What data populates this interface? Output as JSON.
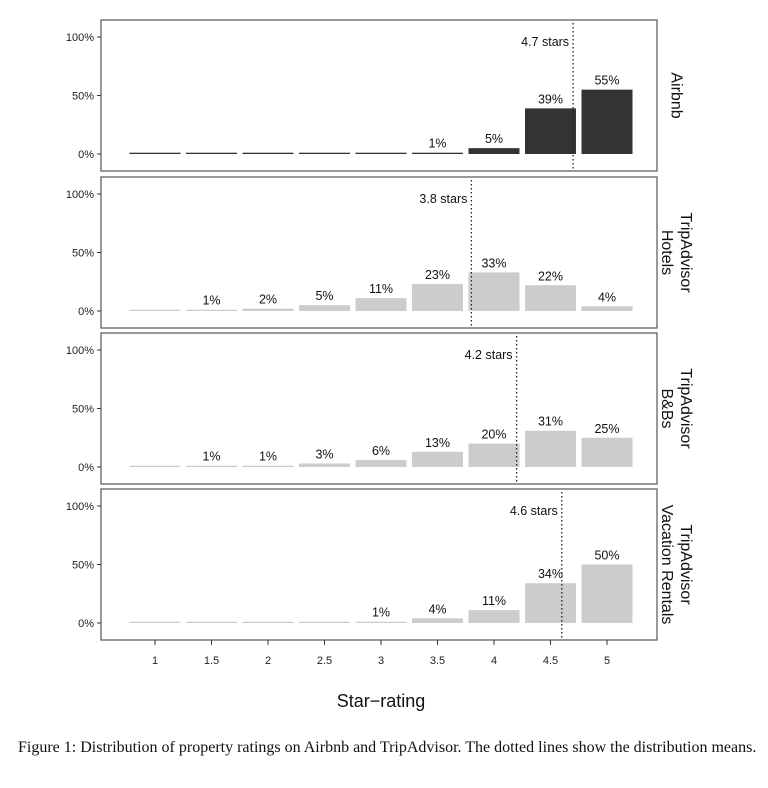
{
  "caption": "Figure 1: Distribution of property ratings on Airbnb and TripAdvisor. The dotted lines show the distribution means.",
  "colors": {
    "dark": "#333333",
    "light": "#cccccc",
    "frame": "#555555"
  },
  "chart_data": {
    "type": "bar",
    "xlabel": "Star−rating",
    "categories": [
      "1",
      "1.5",
      "2",
      "2.5",
      "3",
      "3.5",
      "4",
      "4.5",
      "5"
    ],
    "ylim": [
      0,
      100
    ],
    "y_ticks": [
      "0%",
      "50%",
      "100%"
    ],
    "panels": [
      {
        "label_lines": [
          "Airbnb"
        ],
        "color": "dark",
        "values": [
          0,
          0,
          0,
          0,
          0,
          1,
          5,
          39,
          55
        ],
        "value_labels": [
          "",
          "",
          "",
          "",
          "",
          "1%",
          "5%",
          "39%",
          "55%"
        ],
        "mean": 4.7,
        "mean_label": "4.7 stars"
      },
      {
        "label_lines": [
          "TripAdvisor",
          "Hotels"
        ],
        "color": "light",
        "values": [
          0,
          1,
          2,
          5,
          11,
          23,
          33,
          22,
          4
        ],
        "value_labels": [
          "",
          "1%",
          "2%",
          "5%",
          "11%",
          "23%",
          "33%",
          "22%",
          "4%"
        ],
        "mean": 3.8,
        "mean_label": "3.8 stars"
      },
      {
        "label_lines": [
          "TripAdvisor",
          "B&Bs"
        ],
        "color": "light",
        "values": [
          0,
          1,
          1,
          3,
          6,
          13,
          20,
          31,
          25
        ],
        "value_labels": [
          "",
          "1%",
          "1%",
          "3%",
          "6%",
          "13%",
          "20%",
          "31%",
          "25%"
        ],
        "mean": 4.2,
        "mean_label": "4.2 stars"
      },
      {
        "label_lines": [
          "TripAdvisor",
          "Vacation Rentals"
        ],
        "color": "light",
        "values": [
          0,
          0,
          0,
          0,
          1,
          4,
          11,
          34,
          50
        ],
        "value_labels": [
          "",
          "",
          "",
          "",
          "1%",
          "4%",
          "11%",
          "34%",
          "50%"
        ],
        "mean": 4.6,
        "mean_label": "4.6 stars"
      }
    ]
  }
}
